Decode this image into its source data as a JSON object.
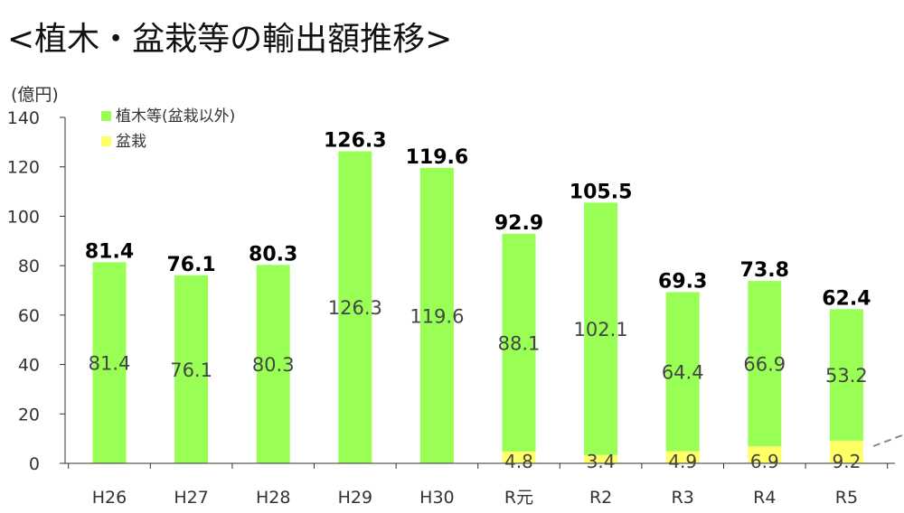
{
  "page": {
    "title": "<植木・盆栽等の輸出額推移>"
  },
  "chart_data": {
    "type": "bar",
    "stacked": true,
    "title": "<植木・盆栽等の輸出額推移>",
    "ylabel": "(億円)",
    "xlabel": "",
    "ylim": [
      0,
      140
    ],
    "yticks": [
      0,
      20,
      40,
      60,
      80,
      100,
      120,
      140
    ],
    "grid": false,
    "legend_position": "top-left",
    "categories": [
      "H26",
      "H27",
      "H28",
      "H29",
      "H30",
      "R元",
      "R2",
      "R3",
      "R4",
      "R5"
    ],
    "series": [
      {
        "name": "盆栽",
        "color": "#ffff66",
        "values": [
          null,
          null,
          null,
          null,
          null,
          4.8,
          3.4,
          4.9,
          6.9,
          9.2
        ]
      },
      {
        "name": "植木等(盆栽以外)",
        "color": "#99ff55",
        "values": [
          81.4,
          76.1,
          80.3,
          126.3,
          119.6,
          88.1,
          102.1,
          64.4,
          66.9,
          53.2
        ]
      }
    ],
    "totals": [
      81.4,
      76.1,
      80.3,
      126.3,
      119.6,
      92.9,
      105.5,
      69.3,
      73.8,
      62.4
    ]
  }
}
